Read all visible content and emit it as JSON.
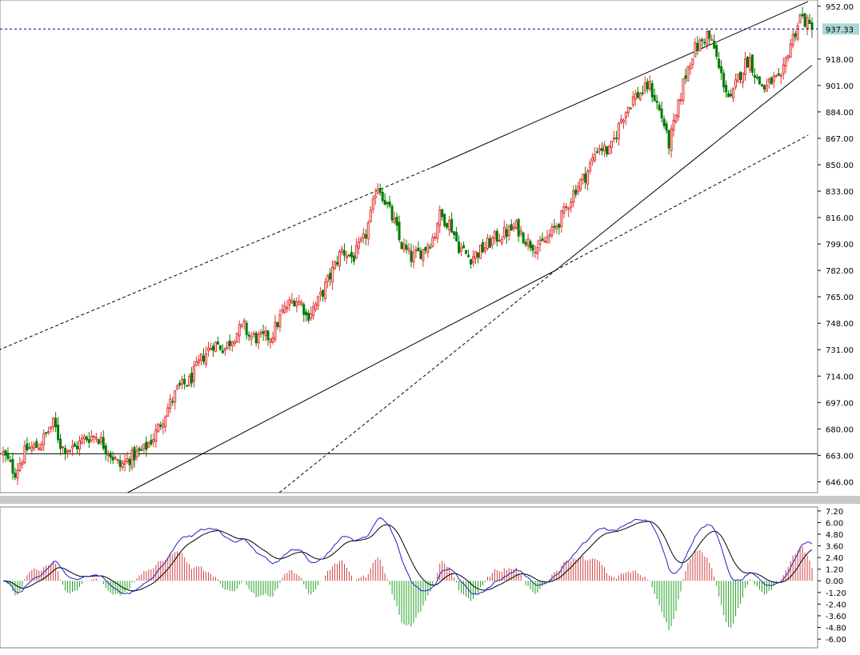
{
  "colors": {
    "bull": "#e03030",
    "bear": "#007a00",
    "line": "#000000",
    "macd_hist_pos": "#d04040",
    "macd_hist_neg": "#20a020",
    "macd_line": "#2020c0",
    "signal_line": "#000000",
    "price_marker_bg": "#a9d8d6",
    "separator": "#c8c8c8",
    "price_dash": "#000080"
  },
  "chart_data": [
    {
      "type": "candlestick",
      "price_axis": {
        "ticks": [
          "952.00",
          "918.00",
          "901.00",
          "884.00",
          "867.00",
          "850.00",
          "833.00",
          "816.00",
          "799.00",
          "782.00",
          "765.00",
          "748.00",
          "731.00",
          "714.00",
          "697.00",
          "680.00",
          "663.00",
          "646.00"
        ],
        "ylim": [
          639,
          956
        ],
        "current_price": "937.33",
        "current_price_value": 937.33
      },
      "anchors": [
        [
          0,
          664
        ],
        [
          3,
          652
        ],
        [
          6,
          667
        ],
        [
          9,
          669
        ],
        [
          12,
          680
        ],
        [
          13,
          684
        ],
        [
          15,
          668
        ],
        [
          18,
          667
        ],
        [
          21,
          674
        ],
        [
          24,
          676
        ],
        [
          27,
          666
        ],
        [
          30,
          656
        ],
        [
          33,
          662
        ],
        [
          36,
          666
        ],
        [
          39,
          676
        ],
        [
          42,
          692
        ],
        [
          45,
          706
        ],
        [
          48,
          711
        ],
        [
          51,
          725
        ],
        [
          54,
          735
        ],
        [
          57,
          732
        ],
        [
          60,
          742
        ],
        [
          62,
          746
        ],
        [
          63,
          740
        ],
        [
          66,
          738
        ],
        [
          69,
          740
        ],
        [
          72,
          756
        ],
        [
          75,
          764
        ],
        [
          77,
          760
        ],
        [
          78,
          752
        ],
        [
          81,
          762
        ],
        [
          84,
          778
        ],
        [
          87,
          795
        ],
        [
          90,
          790
        ],
        [
          93,
          803
        ],
        [
          95,
          822
        ],
        [
          96,
          838
        ],
        [
          97,
          834
        ],
        [
          99,
          822
        ],
        [
          101,
          810
        ],
        [
          102,
          800
        ],
        [
          105,
          790
        ],
        [
          108,
          795
        ],
        [
          111,
          805
        ],
        [
          112,
          818
        ],
        [
          115,
          812
        ],
        [
          117,
          798
        ],
        [
          120,
          790
        ],
        [
          123,
          795
        ],
        [
          126,
          802
        ],
        [
          129,
          806
        ],
        [
          132,
          810
        ],
        [
          135,
          800
        ],
        [
          138,
          797
        ],
        [
          141,
          806
        ],
        [
          144,
          818
        ],
        [
          147,
          834
        ],
        [
          150,
          844
        ],
        [
          153,
          862
        ],
        [
          156,
          858
        ],
        [
          159,
          880
        ],
        [
          162,
          893
        ],
        [
          165,
          898
        ],
        [
          166,
          902
        ],
        [
          168,
          890
        ],
        [
          170,
          876
        ],
        [
          171,
          862
        ],
        [
          173,
          880
        ],
        [
          175,
          904
        ],
        [
          177,
          920
        ],
        [
          178,
          925
        ],
        [
          180,
          930
        ],
        [
          181,
          934
        ],
        [
          183,
          924
        ],
        [
          184,
          912
        ],
        [
          186,
          898
        ],
        [
          187,
          890
        ],
        [
          189,
          906
        ],
        [
          191,
          916
        ],
        [
          192,
          918
        ],
        [
          194,
          904
        ],
        [
          196,
          899
        ],
        [
          198,
          905
        ],
        [
          200,
          903
        ],
        [
          202,
          925
        ],
        [
          204,
          938
        ],
        [
          205,
          946
        ],
        [
          207,
          940
        ],
        [
          208,
          937
        ]
      ],
      "trendlines": [
        {
          "name": "upper-channel",
          "points": [
            [
              -110,
              616
            ],
            [
              110,
              848
            ],
            [
              207,
              955
            ]
          ],
          "style": "solid-from-mid"
        },
        {
          "name": "lower-channel",
          "points": [
            [
              32,
              639
            ],
            [
              142,
              782
            ],
            [
              207,
              869
            ]
          ],
          "style": "solid-then-dashed"
        },
        {
          "name": "inner-support",
          "points": [
            [
              71,
              639
            ],
            [
              142,
              782
            ],
            [
              208,
              914
            ]
          ],
          "style": "dashed-then-solid"
        },
        {
          "name": "horizontal-level",
          "value": 664
        }
      ]
    },
    {
      "type": "macd",
      "axis": {
        "ticks": [
          "7.20",
          "6.00",
          "4.80",
          "3.60",
          "2.40",
          "1.20",
          "0.00",
          "-1.20",
          "-2.40",
          "-3.60",
          "-4.80",
          "-6.00"
        ],
        "ylim": [
          -6.9,
          7.6
        ]
      },
      "series": [
        {
          "kind": "line",
          "color_key": "macd_line"
        },
        {
          "kind": "line",
          "color_key": "signal_line"
        },
        {
          "kind": "histogram"
        }
      ]
    }
  ]
}
